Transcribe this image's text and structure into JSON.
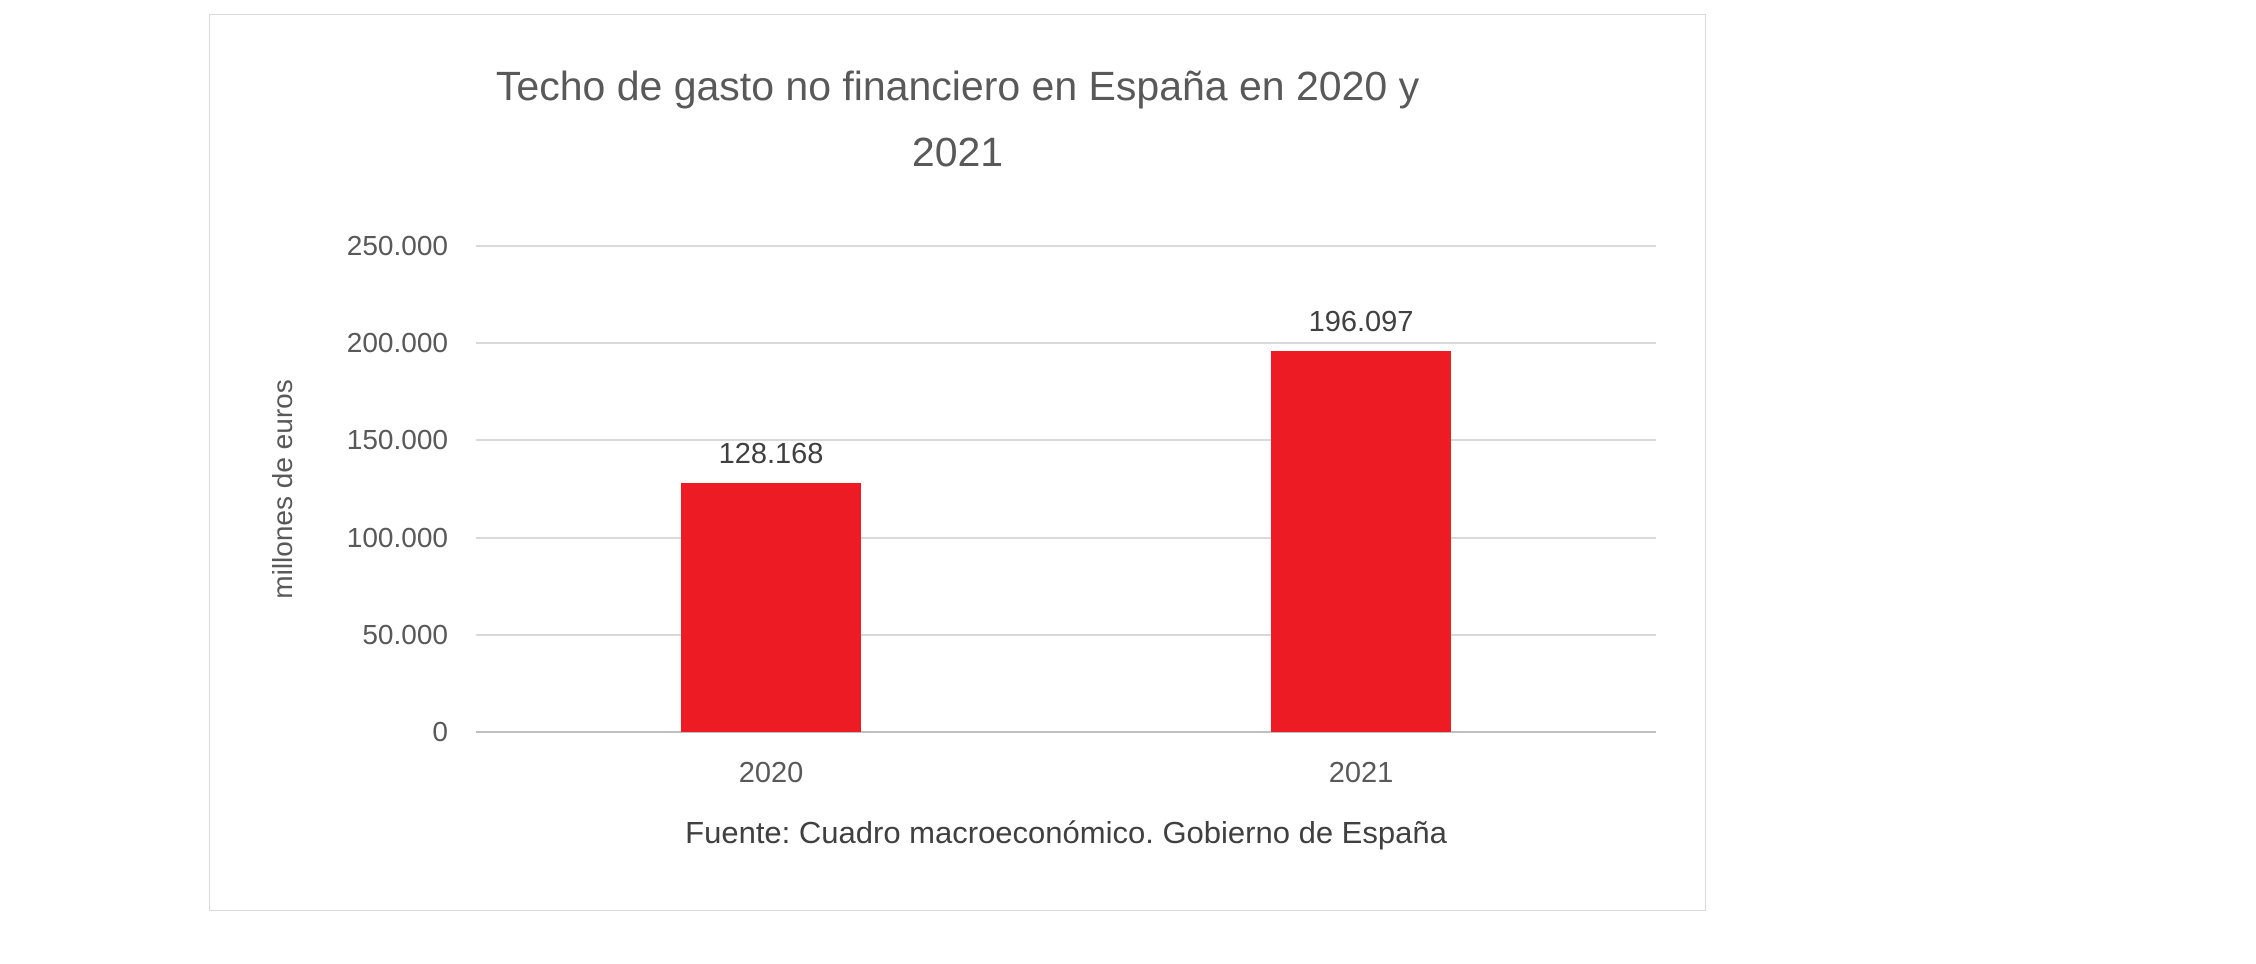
{
  "display": {
    "title_lines": [
      "Techo de gasto no financiero en España en 2020 y",
      "2021"
    ]
  },
  "chart_data": {
    "type": "bar",
    "title": "Techo de gasto no financiero en España en 2020 y 2021",
    "categories": [
      "2020",
      "2021"
    ],
    "values": [
      128168,
      196097
    ],
    "value_labels": [
      "128.168",
      "196.097"
    ],
    "xlabel": "",
    "ylabel": "millones de euros",
    "ylim": [
      0,
      250000
    ],
    "ytick_labels": [
      "0",
      "50.000",
      "100.000",
      "150.000",
      "200.000",
      "250.000"
    ],
    "grid": true,
    "legend": false,
    "bar_color": "#ed1c24",
    "source": "Fuente: Cuadro macroeconómico. Gobierno de España"
  },
  "colors": {
    "text": "#595959",
    "gridline": "#d9d9d9",
    "axis": "#bfbfbf",
    "frame_border": "#d9d9d9",
    "background": "#ffffff"
  }
}
